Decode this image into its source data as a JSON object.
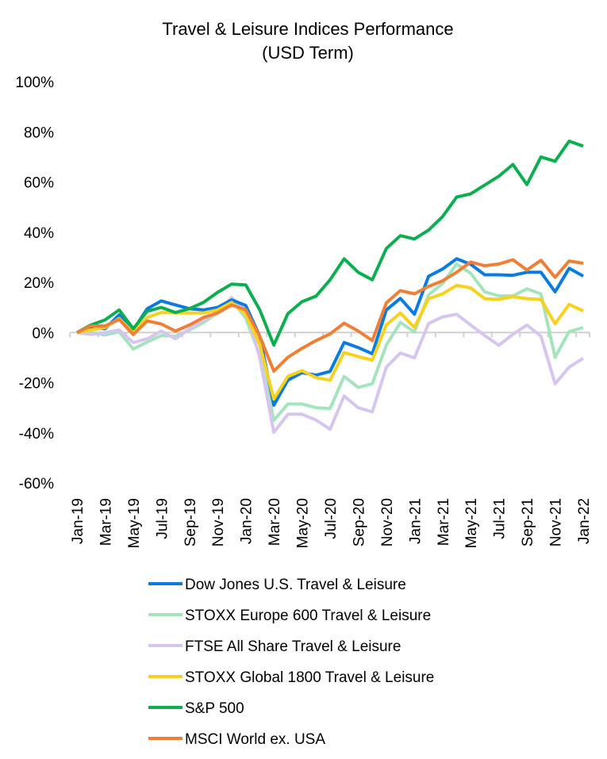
{
  "chart_data": {
    "type": "line",
    "title": [
      "Travel & Leisure Indices Performance",
      "(USD Term)"
    ],
    "xlabel": "",
    "ylabel": "",
    "ylim": [
      -60,
      100
    ],
    "yticks": [
      100,
      80,
      60,
      40,
      20,
      0,
      -20,
      -40,
      -60
    ],
    "ytick_labels": [
      "100%",
      "80%",
      "60%",
      "40%",
      "20%",
      "0%",
      "-20%",
      "-40%",
      "-60%"
    ],
    "y_unit": "%",
    "grid": false,
    "legend_position": "bottom",
    "x": [
      "Jan-19",
      "Feb-19",
      "Mar-19",
      "Apr-19",
      "May-19",
      "Jun-19",
      "Jul-19",
      "Aug-19",
      "Sep-19",
      "Oct-19",
      "Nov-19",
      "Dec-19",
      "Jan-20",
      "Feb-20",
      "Mar-20",
      "Apr-20",
      "May-20",
      "Jun-20",
      "Jul-20",
      "Aug-20",
      "Sep-20",
      "Oct-20",
      "Nov-20",
      "Dec-20",
      "Jan-21",
      "Feb-21",
      "Mar-21",
      "Apr-21",
      "May-21",
      "Jun-21",
      "Jul-21",
      "Aug-21",
      "Sep-21",
      "Oct-21",
      "Nov-21",
      "Dec-21",
      "Jan-22"
    ],
    "xtick_labels": [
      "Jan-19",
      "Mar-19",
      "May-19",
      "Jul-19",
      "Sep-19",
      "Nov-19",
      "Jan-20",
      "Mar-20",
      "May-20",
      "Jul-20",
      "Sep-20",
      "Nov-20",
      "Jan-21",
      "Mar-21",
      "May-21",
      "Jul-21",
      "Sep-21",
      "Nov-21",
      "Jan-22"
    ],
    "series": [
      {
        "name": "STOXX Europe 600 Travel & Leisure",
        "color": "#a3e4bd",
        "values": [
          0,
          0,
          -1,
          0.3,
          -6.6,
          -3.8,
          -1.2,
          -1.5,
          1,
          4,
          7.8,
          13,
          5.7,
          -9,
          -35,
          -28.5,
          -28.5,
          -30,
          -30.3,
          -17.5,
          -21.9,
          -20.4,
          -5,
          4,
          0.2,
          15,
          19.5,
          27.3,
          23.6,
          16.2,
          14.6,
          14.6,
          17.4,
          15.4,
          -9.9,
          0.4,
          1.9
        ]
      },
      {
        "name": "FTSE All Share Travel & Leisure",
        "color": "#d6c5ef",
        "values": [
          0,
          -0.8,
          0,
          1,
          -4,
          -2.5,
          0.6,
          -2.5,
          1.5,
          5,
          8.2,
          14,
          8.9,
          -10,
          -39.8,
          -32.6,
          -32.6,
          -34.9,
          -38.6,
          -25.3,
          -30,
          -31.6,
          -13.8,
          -8.2,
          -10.1,
          3.6,
          6.2,
          7.3,
          3,
          -1.2,
          -5.1,
          -0.7,
          3,
          -1.5,
          -20.4,
          -13.8,
          -10.3
        ]
      },
      {
        "name": "Dow Jones U.S. Travel & Leisure",
        "color": "#0a7be0",
        "values": [
          0,
          2,
          1.5,
          7,
          1,
          9.5,
          12.6,
          11,
          9.5,
          9,
          10,
          13,
          10.8,
          -1.5,
          -29,
          -19,
          -16,
          -17,
          -15.5,
          -4,
          -6,
          -8.5,
          9,
          13.6,
          7.3,
          22.4,
          25.3,
          29.4,
          27.2,
          23,
          23,
          22.8,
          24,
          24,
          16.2,
          25.6,
          22.5
        ]
      },
      {
        "name": "STOXX Global 1800 Travel & Leisure",
        "color": "#f7d11e",
        "values": [
          0,
          1,
          2,
          5.6,
          0,
          6,
          8,
          7.8,
          7.8,
          7.8,
          9,
          12,
          7.3,
          -4.8,
          -26.5,
          -17.5,
          -15.2,
          -18,
          -19,
          -8,
          -9.6,
          -11,
          3,
          7.8,
          2,
          13.5,
          15.4,
          18.8,
          17.8,
          13.5,
          13.2,
          14.3,
          13.5,
          13.2,
          3.5,
          11.2,
          8.6
        ]
      },
      {
        "name": "S&P 500",
        "color": "#0cae4f",
        "values": [
          0,
          3,
          5,
          9,
          1.5,
          8.5,
          10,
          8,
          9.5,
          12,
          16,
          19.3,
          19,
          9,
          -5,
          7.5,
          12.3,
          14.5,
          21,
          29.4,
          24,
          21,
          33.5,
          38.6,
          37.3,
          40.8,
          46.2,
          54,
          55.3,
          58.8,
          62.3,
          67,
          59,
          70,
          68.3,
          76.3,
          74.3
        ]
      },
      {
        "name": "MSCI World ex. USA",
        "color": "#ee7f35",
        "values": [
          0,
          2.6,
          2.6,
          5.2,
          -0.8,
          4.6,
          3.4,
          0.6,
          3,
          6,
          7.8,
          11,
          9.1,
          -1.5,
          -15.4,
          -9.9,
          -6.3,
          -3.2,
          -0.6,
          3.7,
          0.6,
          -3.2,
          11.8,
          16.7,
          15.4,
          18.4,
          20.6,
          24,
          28.1,
          26.6,
          27.3,
          29,
          24.9,
          28.8,
          22,
          28.5,
          27.6
        ]
      }
    ],
    "legend_order": [
      "Dow Jones U.S. Travel & Leisure",
      "STOXX Europe 600 Travel & Leisure",
      "FTSE All Share Travel & Leisure",
      "STOXX Global 1800 Travel & Leisure",
      "S&P 500",
      "MSCI World ex. USA"
    ]
  }
}
